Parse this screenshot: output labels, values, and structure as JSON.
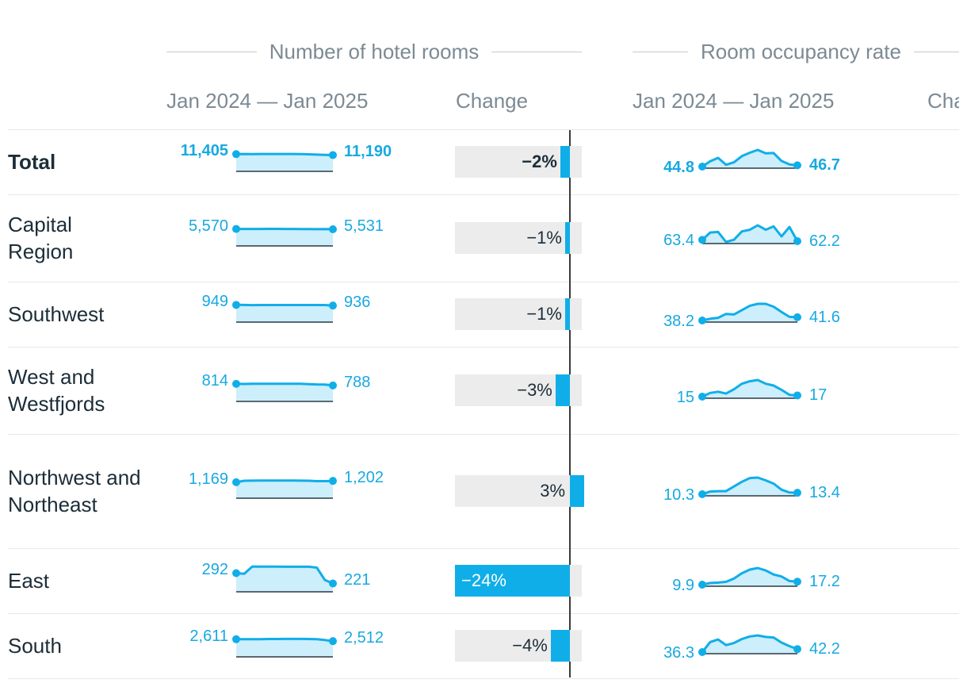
{
  "headers": {
    "rooms_group": "Number of hotel rooms",
    "occupancy_group": "Room occupancy rate",
    "period": "Jan 2024 — Jan 2025",
    "change": "Change",
    "change_cut": "Cha"
  },
  "colors": {
    "accent": "#10aee8",
    "area_fill": "#cdeefb",
    "bar_background": "#ececec",
    "text": "#1c2d38",
    "muted": "#7c8a94"
  },
  "chart_data": {
    "type": "table",
    "columns": [
      "Number of hotel rooms",
      "Change",
      "Room occupancy rate",
      "Cha"
    ],
    "rows": [
      {
        "region": "Total",
        "bold": true,
        "rooms_start": "11,405",
        "rooms_end": "11,190",
        "rooms_series": [
          11405,
          11440,
          11430,
          11450,
          11450,
          11450,
          11445,
          11440,
          11420,
          11360,
          11300,
          11240,
          11190
        ],
        "change_pct": -2,
        "change_label": "−2%",
        "occ_start": "44.8",
        "occ_end": "46.7",
        "occ_series": [
          44.8,
          52.5,
          57.5,
          47.5,
          51.0,
          60.0,
          65.0,
          69.0,
          64.0,
          64.5,
          53.0,
          48.0,
          46.7
        ]
      },
      {
        "region": "Capital Region",
        "bold": false,
        "rooms_start": "5,570",
        "rooms_end": "5,531",
        "rooms_series": [
          5570,
          5570,
          5568,
          5570,
          5575,
          5572,
          5570,
          5565,
          5555,
          5545,
          5540,
          5545,
          5531
        ],
        "change_pct": -1,
        "change_label": "−1%",
        "occ_start": "63.4",
        "occ_end": "62.2",
        "occ_series": [
          63.4,
          70.0,
          70.5,
          61.5,
          63.5,
          71.0,
          72.5,
          76.5,
          72.5,
          75.5,
          66.5,
          75.0,
          62.2
        ]
      },
      {
        "region": "Southwest",
        "bold": false,
        "rooms_start": "949",
        "rooms_end": "936",
        "rooms_series": [
          949,
          948,
          945,
          947,
          946,
          947,
          947,
          947,
          947,
          947,
          947,
          946,
          936
        ],
        "change_pct": -1,
        "change_label": "−1%",
        "occ_start": "38.2",
        "occ_end": "41.6",
        "occ_series": [
          38.2,
          40.0,
          41.0,
          45.0,
          44.5,
          49.0,
          53.5,
          55.5,
          55.5,
          52.5,
          47.0,
          42.0,
          41.6
        ]
      },
      {
        "region": "West and Westfjords",
        "bold": false,
        "rooms_start": "814",
        "rooms_end": "788",
        "rooms_series": [
          814,
          812,
          816,
          817,
          817,
          817,
          817,
          817,
          815,
          810,
          805,
          803,
          788
        ],
        "change_pct": -3,
        "change_label": "−3%",
        "occ_start": "15",
        "occ_end": "17",
        "occ_series": [
          15,
          21,
          23,
          20,
          27,
          36,
          40,
          42,
          36,
          33,
          26,
          18,
          17
        ]
      },
      {
        "region": "Northwest and Northeast",
        "bold": false,
        "rooms_start": "1,169",
        "rooms_end": "1,202",
        "rooms_series": [
          1169,
          1205,
          1207,
          1210,
          1210,
          1212,
          1212,
          1210,
          1208,
          1205,
          1195,
          1195,
          1202
        ],
        "change_pct": 3,
        "change_label": "3%",
        "occ_start": "10.3",
        "occ_end": "13.4",
        "occ_series": [
          10.3,
          16,
          17,
          17,
          27,
          37,
          45,
          46,
          40,
          33,
          20,
          14,
          13.4
        ]
      },
      {
        "region": "East",
        "bold": false,
        "rooms_start": "292",
        "rooms_end": "221",
        "rooms_series": [
          292,
          288,
          338,
          337,
          337,
          337,
          336,
          336,
          336,
          336,
          330,
          245,
          221
        ],
        "change_pct": -24,
        "change_label": "−24%",
        "occ_start": "9.9",
        "occ_end": "17.2",
        "occ_series": [
          9.9,
          14,
          15,
          17,
          25,
          38,
          47,
          51,
          45,
          35,
          30,
          19,
          17.2
        ]
      },
      {
        "region": "South",
        "bold": false,
        "rooms_start": "2,611",
        "rooms_end": "2,512",
        "rooms_series": [
          2611,
          2610,
          2615,
          2610,
          2625,
          2625,
          2628,
          2628,
          2630,
          2625,
          2610,
          2570,
          2512
        ],
        "change_pct": -4,
        "change_label": "−4%",
        "occ_start": "36.3",
        "occ_end": "42.2",
        "occ_series": [
          36.3,
          56,
          61,
          50,
          54,
          62,
          67,
          69,
          66,
          65,
          55,
          48,
          42.2
        ]
      }
    ]
  }
}
